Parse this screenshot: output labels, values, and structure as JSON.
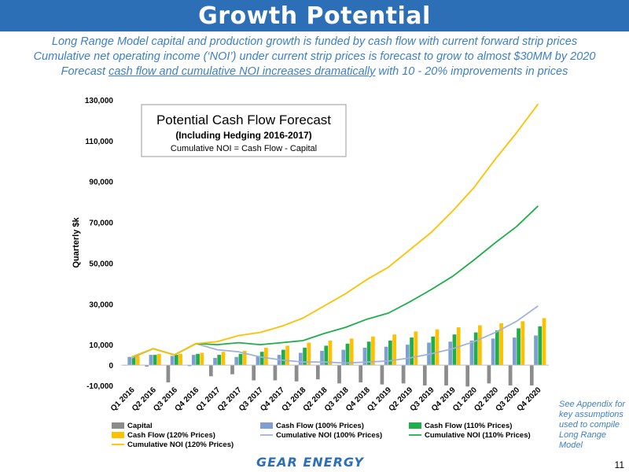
{
  "header": {
    "title": "Growth Potential"
  },
  "subtitle": {
    "line1": "Long Range Model capital and production growth is funded by cash flow with current forward strip prices",
    "line2": "Cumulative net operating income (‘NOI’) under current strip prices is forecast to grow to almost $30MM by 2020",
    "line3_pre": "Forecast ",
    "line3_underlined": "cash flow and cumulative NOI increases dramatically",
    "line3_post": " with 10 - 20% improvements in prices"
  },
  "footnote": "See Appendix for key assumptions used to compile Long Range Model",
  "page_number": "11",
  "logo": "GEAR ENERGY",
  "colors": {
    "banner": "#2c6fb7",
    "capital": "#8c8c8c",
    "cf100": "#7f9ed1",
    "cf110": "#1fae4b",
    "cf120": "#ffc000",
    "noi100": "#9fb3d9",
    "noi110": "#1fae4b",
    "noi120": "#ffc000"
  },
  "chart_data": {
    "type": "bar",
    "title": "Potential Cash Flow Forecast",
    "subtitle": "(Including Hedging 2016-2017)",
    "subtitle2": "Cumulative NOI = Cash Flow - Capital",
    "ylabel": "Quarterly $k",
    "ylim": [
      -10000,
      130000
    ],
    "yticks": [
      -10000,
      0,
      10000,
      30000,
      50000,
      70000,
      90000,
      110000,
      130000
    ],
    "ytick_labels": [
      "-10,000",
      "0",
      "10,000",
      "30,000",
      "50,000",
      "70,000",
      "90,000",
      "110,000",
      "130,000"
    ],
    "categories": [
      "Q1 2016",
      "Q2 2016",
      "Q3 2016",
      "Q4 2016",
      "Q1 2017",
      "Q2 2017",
      "Q3 2017",
      "Q4 2017",
      "Q1 2018",
      "Q2 2018",
      "Q3 2018",
      "Q4 2018",
      "Q1 2019",
      "Q2 2019",
      "Q3 2019",
      "Q4 2019",
      "Q1 2020",
      "Q2 2020",
      "Q3 2020",
      "Q4 2020"
    ],
    "bar_series": [
      {
        "key": "capital",
        "name": "Capital",
        "values": [
          -200,
          -700,
          -8500,
          -500,
          -5500,
          -4500,
          -7500,
          -7500,
          -8000,
          -7000,
          -9000,
          -8500,
          -9500,
          -9000,
          -10000,
          -10000,
          -10500,
          -9000,
          -10000,
          -10000
        ]
      },
      {
        "key": "cf100",
        "name": "Cash Flow (100% Prices)",
        "values": [
          4000,
          5000,
          4500,
          5000,
          3500,
          4000,
          4500,
          5000,
          6000,
          7000,
          7500,
          8500,
          9000,
          10000,
          11000,
          11500,
          12000,
          13000,
          13500,
          14500
        ]
      },
      {
        "key": "cf110",
        "name": "Cash Flow (110% Prices)",
        "values": [
          4500,
          5000,
          5000,
          5500,
          5000,
          5500,
          6500,
          7500,
          8500,
          9500,
          10500,
          11500,
          12000,
          13500,
          14000,
          15000,
          16000,
          17000,
          18000,
          19000
        ]
      },
      {
        "key": "cf120",
        "name": "Cash Flow (120% Prices)",
        "values": [
          4500,
          5500,
          5500,
          6000,
          6500,
          7000,
          8500,
          9500,
          11000,
          12000,
          13000,
          14000,
          15000,
          16500,
          17500,
          18500,
          19500,
          20500,
          21500,
          23000
        ]
      }
    ],
    "line_series": [
      {
        "key": "noi100",
        "name": "Cumulative NOI (100% Prices)",
        "values": [
          3500,
          8000,
          5000,
          10500,
          7500,
          6500,
          4000,
          2500,
          1500,
          1500,
          1000,
          1500,
          2000,
          3500,
          5500,
          8000,
          11500,
          16000,
          21500,
          29000
        ]
      },
      {
        "key": "noi110",
        "name": "Cumulative NOI (110% Prices)",
        "values": [
          4000,
          8000,
          5000,
          10500,
          10000,
          11000,
          10000,
          11000,
          12000,
          15500,
          18500,
          22500,
          25500,
          31000,
          37000,
          43500,
          51500,
          60000,
          68000,
          78000
        ]
      },
      {
        "key": "noi120",
        "name": "Cumulative NOI (120% Prices)",
        "values": [
          4000,
          8000,
          5000,
          10500,
          11500,
          14500,
          16000,
          19000,
          23000,
          29000,
          35000,
          42000,
          48000,
          56500,
          65000,
          75500,
          87000,
          101000,
          114000,
          128000
        ]
      }
    ],
    "legend_order": [
      "capital",
      "cf100",
      "cf110",
      "cf120",
      "noi100",
      "noi110",
      "noi120"
    ],
    "legend_position": "bottom",
    "grid": false
  }
}
